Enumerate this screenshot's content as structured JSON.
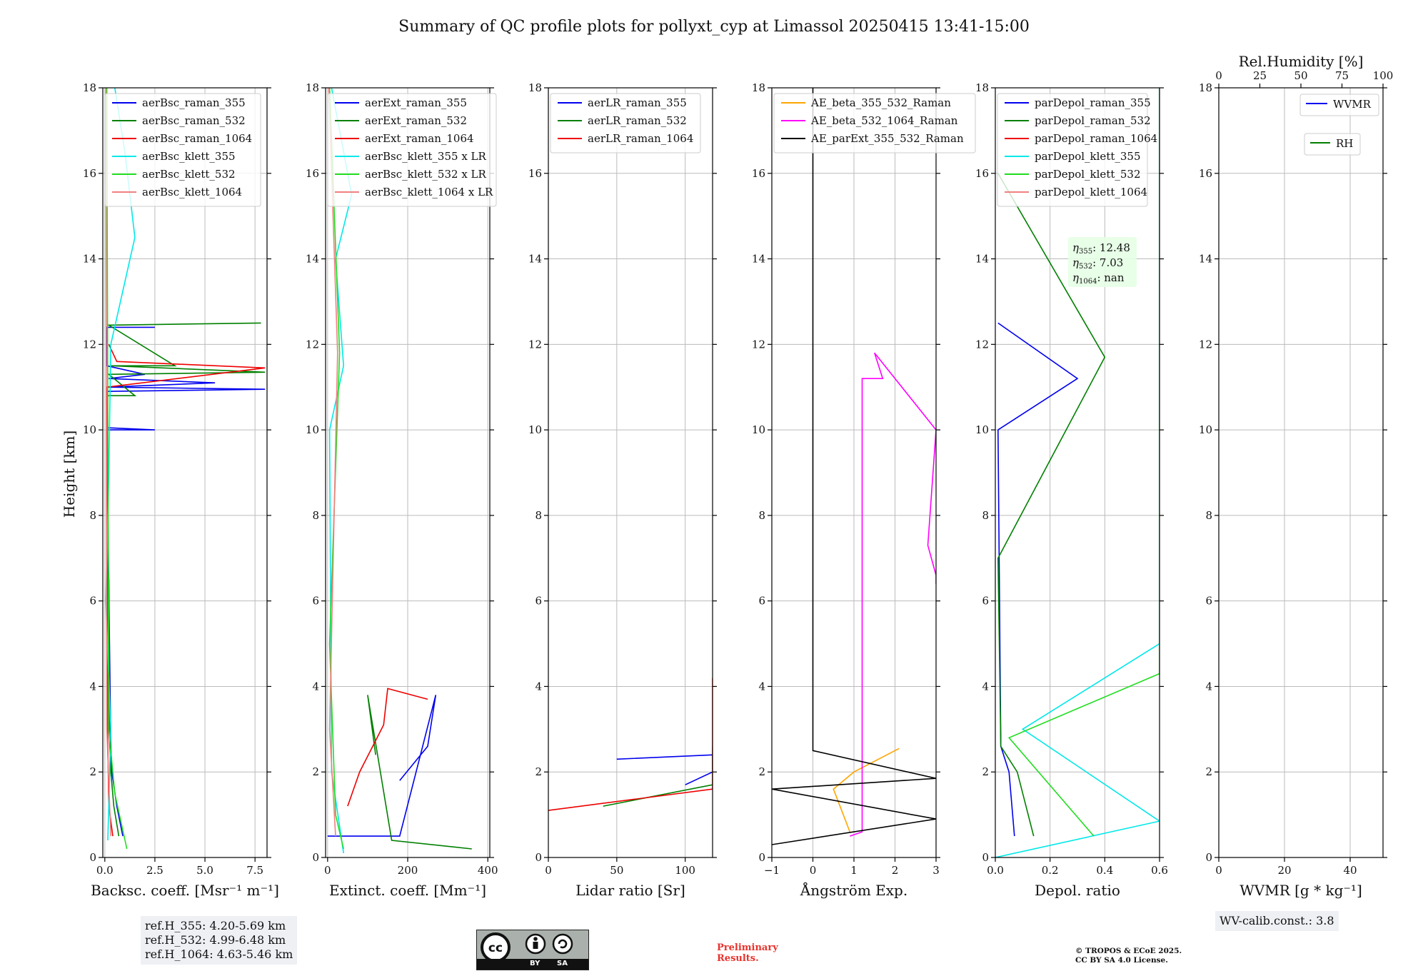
{
  "title": "Summary of QC profile plots for pollyxt_cyp at Limassol 20250415 13:41-15:00",
  "y_axis_label": "Height [km]",
  "panels": [
    {
      "xlabel": "Backsc. coeff. [Msr⁻¹ m⁻¹]",
      "xlim": [
        -0.1,
        8.1
      ],
      "xticks": [
        "0.0",
        "2.5",
        "5.0",
        "7.5"
      ],
      "legend": [
        {
          "label": "aerBsc_raman_355",
          "color": "#0000ee"
        },
        {
          "label": "aerBsc_raman_532",
          "color": "#008000"
        },
        {
          "label": "aerBsc_raman_1064",
          "color": "#ee0000"
        },
        {
          "label": "aerBsc_klett_355",
          "color": "#00e8e8"
        },
        {
          "label": "aerBsc_klett_532",
          "color": "#22dd22"
        },
        {
          "label": "aerBsc_klett_1064",
          "color": "#f08080"
        }
      ]
    },
    {
      "xlabel": "Extinct. coeff. [Mm⁻¹]",
      "xlim": [
        -5,
        405
      ],
      "xticks": [
        "0",
        "200",
        "400"
      ],
      "legend": [
        {
          "label": "aerExt_raman_355",
          "color": "#0000ee"
        },
        {
          "label": "aerExt_raman_532",
          "color": "#008000"
        },
        {
          "label": "aerExt_raman_1064",
          "color": "#ee0000"
        },
        {
          "label": "aerBsc_klett_355 x LR",
          "color": "#00e8e8"
        },
        {
          "label": "aerBsc_klett_532 x LR",
          "color": "#22dd22"
        },
        {
          "label": "aerBsc_klett_1064 x LR",
          "color": "#f08080"
        }
      ]
    },
    {
      "xlabel": "Lidar ratio [Sr]",
      "xlim": [
        0,
        120
      ],
      "xticks": [
        "0",
        "50",
        "100"
      ],
      "legend": [
        {
          "label": "aerLR_raman_355",
          "color": "#0000ee"
        },
        {
          "label": "aerLR_raman_532",
          "color": "#008000"
        },
        {
          "label": "aerLR_raman_1064",
          "color": "#ee0000"
        }
      ]
    },
    {
      "xlabel": "Ångström Exp.",
      "xlim": [
        -1,
        3
      ],
      "xticks": [
        "−1",
        "0",
        "1",
        "2",
        "3"
      ],
      "legend": [
        {
          "label": "AE_beta_355_532_Raman",
          "color": "#ffa500"
        },
        {
          "label": "AE_beta_532_1064_Raman",
          "color": "#ff00ff"
        },
        {
          "label": "AE_parExt_355_532_Raman",
          "color": "#000000"
        }
      ]
    },
    {
      "xlabel": "Depol. ratio",
      "xlim": [
        0,
        0.6
      ],
      "xticks": [
        "0.0",
        "0.2",
        "0.4",
        "0.6"
      ],
      "legend": [
        {
          "label": "parDepol_raman_355",
          "color": "#0000ee"
        },
        {
          "label": "parDepol_raman_532",
          "color": "#008000"
        },
        {
          "label": "parDepol_raman_1064",
          "color": "#ee0000"
        },
        {
          "label": "parDepol_klett_355",
          "color": "#00e8e8"
        },
        {
          "label": "parDepol_klett_532",
          "color": "#22dd22"
        },
        {
          "label": "parDepol_klett_1064",
          "color": "#f08080"
        }
      ],
      "annotation": [
        {
          "sym": "η",
          "sub": "355",
          "val": ": 12.48"
        },
        {
          "sym": "η",
          "sub": "532",
          "val": ": 7.03"
        },
        {
          "sym": "η",
          "sub": "1064",
          "val": ": nan"
        }
      ]
    },
    {
      "xlabel": "WVMR [g * kg⁻¹]",
      "xlim": [
        0,
        50
      ],
      "xticks": [
        "0",
        "20",
        "40"
      ],
      "top_xlabel": "Rel.Humidity [%]",
      "top_xticks": [
        "0",
        "25",
        "50",
        "75",
        "100"
      ],
      "legend": [
        {
          "label": "WVMR",
          "color": "#0000ee"
        }
      ],
      "legend2": [
        {
          "label": "RH",
          "color": "#008000"
        }
      ]
    }
  ],
  "chart_data": {
    "type": "line",
    "ylim": [
      0,
      18
    ],
    "yticks": [
      "0",
      "2",
      "4",
      "6",
      "8",
      "10",
      "12",
      "14",
      "16",
      "18"
    ],
    "grid": true,
    "panels": [
      {
        "series": [
          {
            "name": "aerBsc_raman_355",
            "points": [
              [
                0.9,
                0.5
              ],
              [
                0.6,
                1.2
              ],
              [
                0.35,
                2.0
              ],
              [
                0.3,
                2.6
              ],
              [
                0.1,
                10.0
              ],
              [
                2.5,
                10.0
              ],
              [
                0.1,
                10.05
              ],
              [
                0.1,
                10.9
              ],
              [
                8.0,
                10.95
              ],
              [
                0.1,
                11.0
              ],
              [
                5.5,
                11.1
              ],
              [
                0.2,
                11.2
              ],
              [
                2.0,
                11.3
              ],
              [
                0.1,
                11.5
              ],
              [
                0.1,
                12.4
              ],
              [
                2.5,
                12.4
              ]
            ]
          },
          {
            "name": "aerBsc_raman_532",
            "points": [
              [
                0.7,
                0.5
              ],
              [
                0.45,
                1.2
              ],
              [
                0.3,
                2.0
              ],
              [
                0.25,
                2.6
              ],
              [
                0.2,
                6.5
              ],
              [
                0.1,
                7.4
              ],
              [
                0.1,
                10.8
              ],
              [
                1.5,
                10.8
              ],
              [
                0.2,
                11.3
              ],
              [
                8.0,
                11.35
              ],
              [
                0.3,
                11.5
              ],
              [
                3.5,
                11.5
              ],
              [
                0.2,
                12.45
              ],
              [
                7.8,
                12.5
              ]
            ]
          },
          {
            "name": "aerBsc_raman_1064",
            "points": [
              [
                0.4,
                0.5
              ],
              [
                0.2,
                1.2
              ],
              [
                0.15,
                2.6
              ],
              [
                0.1,
                11.0
              ],
              [
                8.0,
                11.45
              ],
              [
                0.6,
                11.6
              ],
              [
                0.2,
                12.0
              ]
            ]
          },
          {
            "name": "aerBsc_klett_355",
            "points": [
              [
                0.15,
                0.4
              ],
              [
                0.3,
                3.0
              ],
              [
                0.05,
                6.0
              ],
              [
                0.2,
                9.0
              ],
              [
                0.3,
                12.0
              ],
              [
                1.5,
                14.5
              ],
              [
                1.0,
                16.5
              ],
              [
                0.5,
                18.0
              ]
            ]
          },
          {
            "name": "aerBsc_klett_532",
            "points": [
              [
                1.1,
                0.2
              ],
              [
                0.5,
                1.5
              ],
              [
                0.2,
                3.0
              ],
              [
                0.1,
                18.0
              ]
            ]
          },
          {
            "name": "aerBsc_klett_1064",
            "points": [
              [
                0.3,
                0.5
              ],
              [
                0.1,
                3.0
              ],
              [
                0.05,
                18.0
              ]
            ]
          }
        ]
      },
      {
        "series": [
          {
            "name": "aerExt_raman_355",
            "points": [
              [
                0,
                0.5
              ],
              [
                180,
                0.5
              ],
              [
                270,
                3.8
              ],
              [
                250,
                2.6
              ],
              [
                180,
                1.8
              ]
            ]
          },
          {
            "name": "aerExt_raman_532",
            "points": [
              [
                360,
                0.2
              ],
              [
                160,
                0.4
              ],
              [
                100,
                3.8
              ],
              [
                120,
                2.4
              ]
            ]
          },
          {
            "name": "aerExt_raman_1064",
            "points": [
              [
                250,
                3.7
              ],
              [
                150,
                3.95
              ],
              [
                140,
                3.1
              ],
              [
                80,
                2.0
              ],
              [
                50,
                1.2
              ]
            ]
          },
          {
            "name": "aerBsc_klett_355 x LR",
            "points": [
              [
                40,
                0.1
              ],
              [
                10,
                2.0
              ],
              [
                5,
                10.0
              ],
              [
                40,
                11.5
              ],
              [
                20,
                14.0
              ],
              [
                60,
                15.5
              ],
              [
                10,
                18.0
              ]
            ]
          },
          {
            "name": "aerBsc_klett_532 x LR",
            "points": [
              [
                40,
                0.2
              ],
              [
                20,
                1.0
              ],
              [
                5,
                5.0
              ],
              [
                30,
                11.8
              ],
              [
                5,
                18.0
              ]
            ]
          },
          {
            "name": "aerBsc_klett_1064 x LR",
            "points": [
              [
                20,
                0.5
              ],
              [
                5,
                3.0
              ],
              [
                25,
                11.8
              ],
              [
                3,
                18.0
              ]
            ]
          }
        ]
      },
      {
        "series": [
          {
            "name": "aerLR_raman_355",
            "points": [
              [
                100,
                1.7
              ],
              [
                120,
                2.0
              ],
              [
                120,
                2.4
              ],
              [
                50,
                2.3
              ]
            ]
          },
          {
            "name": "aerLR_raman_532",
            "points": [
              [
                40,
                1.2
              ],
              [
                120,
                1.7
              ],
              [
                120,
                2.6
              ]
            ]
          },
          {
            "name": "aerLR_raman_1064",
            "points": [
              [
                0,
                1.1
              ],
              [
                120,
                1.6
              ],
              [
                120,
                4.2
              ]
            ]
          }
        ]
      },
      {
        "series": [
          {
            "name": "AE_beta_355_532_Raman",
            "points": [
              [
                0.9,
                0.6
              ],
              [
                0.5,
                1.6
              ],
              [
                1.0,
                2.0
              ],
              [
                2.1,
                2.55
              ]
            ]
          },
          {
            "name": "AE_beta_532_1064_Raman",
            "points": [
              [
                0.9,
                0.5
              ],
              [
                1.2,
                0.6
              ],
              [
                1.2,
                2.0
              ],
              [
                1.2,
                11.2
              ],
              [
                1.7,
                11.2
              ],
              [
                1.5,
                11.8
              ],
              [
                3.0,
                10.0
              ],
              [
                2.8,
                7.3
              ],
              [
                3.0,
                6.6
              ],
              [
                3.0,
                6.4
              ]
            ]
          },
          {
            "name": "AE_parExt_355_532_Raman",
            "points": [
              [
                -1,
                0.3
              ],
              [
                3,
                0.9
              ],
              [
                -1,
                1.6
              ],
              [
                3,
                1.85
              ],
              [
                0,
                2.5
              ],
              [
                0,
                18.0
              ]
            ]
          }
        ]
      },
      {
        "series": [
          {
            "name": "parDepol_raman_355",
            "points": [
              [
                0.07,
                0.5
              ],
              [
                0.05,
                2.0
              ],
              [
                0.02,
                2.6
              ],
              [
                0.01,
                10.0
              ],
              [
                0.3,
                11.2
              ],
              [
                0.01,
                12.5
              ]
            ]
          },
          {
            "name": "parDepol_raman_532",
            "points": [
              [
                0.14,
                0.5
              ],
              [
                0.08,
                2.0
              ],
              [
                0.02,
                2.6
              ],
              [
                0.01,
                7.0
              ],
              [
                0.4,
                11.7
              ],
              [
                0.01,
                16.0
              ]
            ]
          },
          {
            "name": "parDepol_raman_1064",
            "points": []
          },
          {
            "name": "parDepol_klett_355",
            "points": [
              [
                0.0,
                0.0
              ],
              [
                0.6,
                0.85
              ],
              [
                0.1,
                3.0
              ],
              [
                0.6,
                5.0
              ],
              [
                0.6,
                15.0
              ],
              [
                0.6,
                18.0
              ]
            ]
          },
          {
            "name": "parDepol_klett_532",
            "points": [
              [
                0.36,
                0.5
              ],
              [
                0.05,
                2.8
              ],
              [
                0.6,
                4.3
              ],
              [
                0.6,
                12.0
              ],
              [
                0.6,
                18.0
              ]
            ]
          },
          {
            "name": "parDepol_klett_1064",
            "points": []
          }
        ]
      },
      {
        "series": [
          {
            "name": "WVMR",
            "points": []
          },
          {
            "name": "RH",
            "points": []
          }
        ]
      }
    ]
  },
  "footer": {
    "ref_heights": [
      "ref.H_355: 4.20-5.69 km",
      "ref.H_532: 4.99-6.48 km",
      "ref.H_1064: 4.63-5.46 km"
    ],
    "license_badge": {
      "left": "BY",
      "right": "SA"
    },
    "preliminary": [
      "Preliminary",
      "Results."
    ],
    "copyright": [
      "© TROPOS & ECoE 2025.",
      "CC BY SA 4.0 License."
    ],
    "wv_calib": "WV-calib.const.: 3.8"
  },
  "colors": {
    "grid": "#bbbbbb",
    "axis": "#000000",
    "legend_border": "#cccccc"
  }
}
